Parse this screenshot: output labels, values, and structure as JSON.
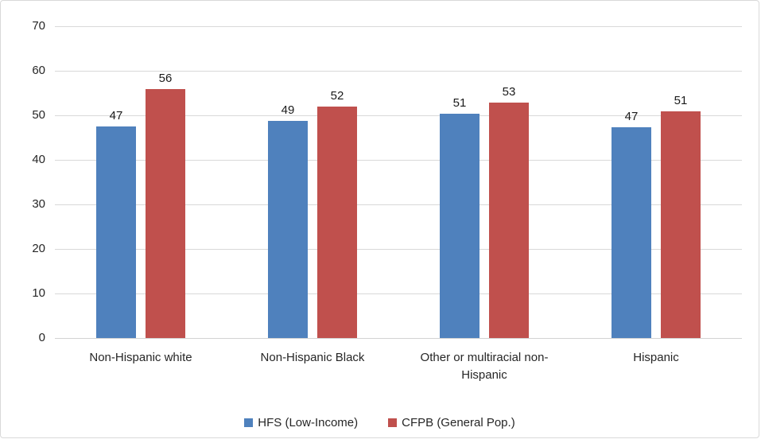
{
  "chart_data": {
    "type": "bar",
    "title": "",
    "xlabel": "",
    "ylabel": "",
    "categories": [
      "Non-Hispanic white",
      "Non-Hispanic Black",
      "Other or multiracial non-Hispanic",
      "Hispanic"
    ],
    "series": [
      {
        "name": "HFS (Low-Income)",
        "color": "#4F81BD",
        "values": [
          47,
          49,
          51,
          47
        ],
        "bar_heights_estimated": [
          47.5,
          48.7,
          50.4,
          47.3
        ]
      },
      {
        "name": "CFPB (General Pop.)",
        "color": "#C0504D",
        "values": [
          56,
          52,
          53,
          51
        ],
        "bar_heights_estimated": [
          55.9,
          52.0,
          52.9,
          50.9
        ]
      }
    ],
    "ylim": [
      0,
      70
    ],
    "yticks": [
      0,
      10,
      20,
      30,
      40,
      50,
      60,
      70
    ],
    "grid": true,
    "legend_position": "bottom",
    "colors": {
      "gridline": "#D9D9D9",
      "axis_line": "#D3D3D3",
      "text": "#262626",
      "frame_border": "#D9D9D9",
      "background": "#FFFFFF"
    }
  }
}
